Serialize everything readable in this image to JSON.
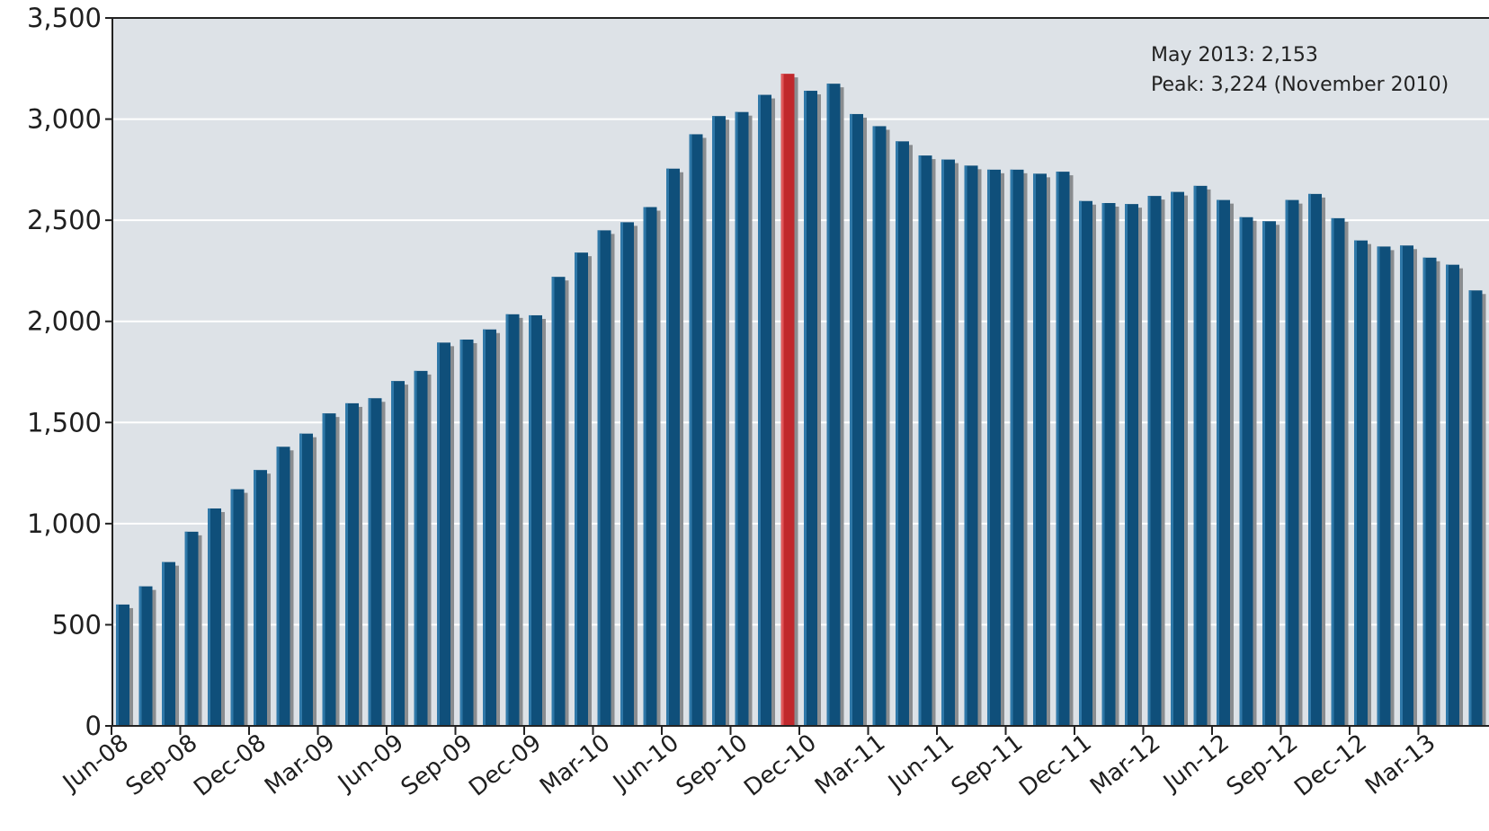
{
  "chart_data": {
    "type": "bar",
    "annotations": [
      "May 2013: 2,153",
      "Peak: 3,224 (November 2010)"
    ],
    "ylim": [
      0,
      3500
    ],
    "yticks": [
      0,
      500,
      1000,
      1500,
      2000,
      2500,
      3000,
      3500
    ],
    "ytick_labels": [
      "0",
      "500",
      "1,000",
      "1,500",
      "2,000",
      "2,500",
      "3,000",
      "3,500"
    ],
    "xtick_labels": [
      "Jun-08",
      "Sep-08",
      "Dec-08",
      "Mar-09",
      "Jun-09",
      "Sep-09",
      "Dec-09",
      "Mar-10",
      "Jun-10",
      "Sep-10",
      "Dec-10",
      "Mar-11",
      "Jun-11",
      "Sep-11",
      "Dec-11",
      "Mar-12",
      "Jun-12",
      "Sep-12",
      "Dec-12",
      "Mar-13"
    ],
    "grid": true,
    "bar_color": "#0f4f7a",
    "highlight_color": "#c0282c",
    "highlight_category": "Nov-10",
    "categories": [
      "Jun-08",
      "Jul-08",
      "Aug-08",
      "Sep-08",
      "Oct-08",
      "Nov-08",
      "Dec-08",
      "Jan-09",
      "Feb-09",
      "Mar-09",
      "Apr-09",
      "May-09",
      "Jun-09",
      "Jul-09",
      "Aug-09",
      "Sep-09",
      "Oct-09",
      "Nov-09",
      "Dec-09",
      "Jan-10",
      "Feb-10",
      "Mar-10",
      "Apr-10",
      "May-10",
      "Jun-10",
      "Jul-10",
      "Aug-10",
      "Sep-10",
      "Oct-10",
      "Nov-10",
      "Dec-10",
      "Jan-11",
      "Feb-11",
      "Mar-11",
      "Apr-11",
      "May-11",
      "Jun-11",
      "Jul-11",
      "Aug-11",
      "Sep-11",
      "Oct-11",
      "Nov-11",
      "Dec-11",
      "Jan-12",
      "Feb-12",
      "Mar-12",
      "Apr-12",
      "May-12",
      "Jun-12",
      "Jul-12",
      "Aug-12",
      "Sep-12",
      "Oct-12",
      "Nov-12",
      "Dec-12",
      "Jan-13",
      "Feb-13",
      "Mar-13",
      "Apr-13",
      "May-13"
    ],
    "values": [
      600,
      690,
      810,
      960,
      1075,
      1170,
      1265,
      1380,
      1445,
      1545,
      1595,
      1620,
      1705,
      1755,
      1895,
      1910,
      1960,
      2035,
      2030,
      2220,
      2340,
      2450,
      2490,
      2565,
      2755,
      2925,
      3015,
      3035,
      3120,
      3224,
      3140,
      3175,
      3025,
      2965,
      2890,
      2820,
      2800,
      2770,
      2750,
      2750,
      2730,
      2740,
      2595,
      2585,
      2580,
      2620,
      2640,
      2670,
      2600,
      2515,
      2495,
      2600,
      2630,
      2510,
      2400,
      2370,
      2375,
      2315,
      2280,
      2153
    ]
  }
}
